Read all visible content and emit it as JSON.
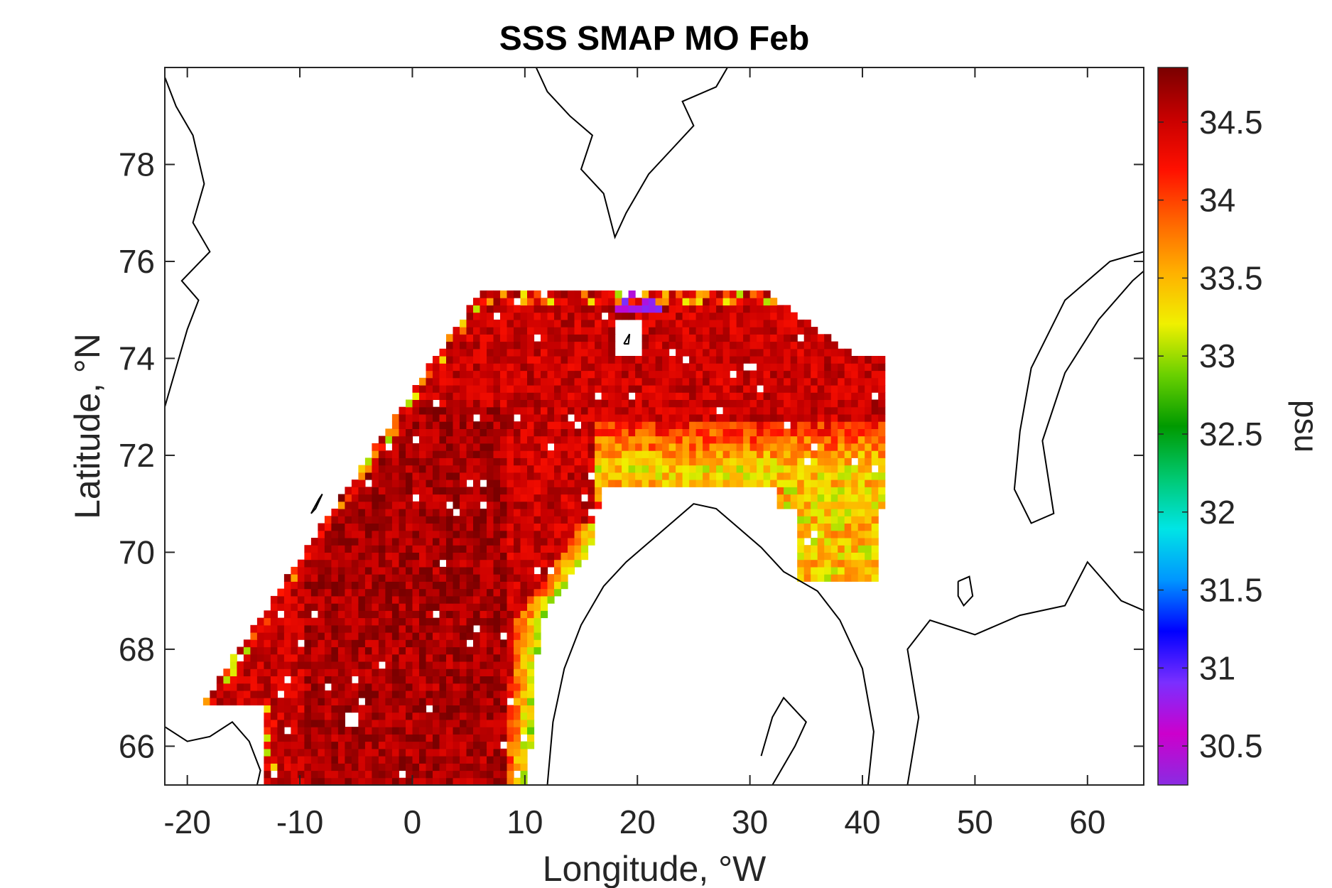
{
  "chart_data": {
    "type": "heatmap",
    "title": "SSS SMAP MO Feb",
    "xlabel": "Longitude, °W",
    "ylabel": "Latitude, °N",
    "xlim": [
      -22,
      65
    ],
    "ylim": [
      65.2,
      80
    ],
    "xticks": [
      -20,
      -10,
      0,
      10,
      20,
      30,
      40,
      50,
      60
    ],
    "xtick_labels": [
      "-20",
      "-10",
      "0",
      "10",
      "20",
      "30",
      "40",
      "50",
      "60"
    ],
    "yticks": [
      66,
      68,
      70,
      72,
      74,
      76,
      78
    ],
    "ytick_labels": [
      "66",
      "68",
      "70",
      "72",
      "74",
      "76",
      "78"
    ],
    "colorbar": {
      "label": "psu",
      "clim": [
        30.25,
        34.85
      ],
      "ticks": [
        30.5,
        31,
        31.5,
        32,
        32.5,
        33,
        33.5,
        34,
        34.5
      ],
      "tick_labels": [
        "30.5",
        "31",
        "31.5",
        "32",
        "32.5",
        "33",
        "33.5",
        "34",
        "34.5"
      ],
      "colormap": [
        "#8a2be2",
        "#cc00cc",
        "#7a2fff",
        "#0000ff",
        "#0096ff",
        "#00e5e5",
        "#00c870",
        "#009a00",
        "#6ad000",
        "#f0f000",
        "#ffb000",
        "#ff6400",
        "#ff1000",
        "#c80000",
        "#7a0000"
      ]
    },
    "grid": false,
    "data_region": {
      "description_of_values": "sea surface salinity, mostly 34.2–34.8 psu over the Norwegian and Barents Seas; fresher 32.5–33.8 psu band along the Norwegian coast and north of Norway; fresher patch ~30.5 psu near 20°E 75°N",
      "sample_points": [
        {
          "lon": 0,
          "lat": 70,
          "psu": 34.7
        },
        {
          "lon": -5,
          "lat": 72,
          "psu": 34.7
        },
        {
          "lon": 10,
          "lat": 73,
          "psu": 34.5
        },
        {
          "lon": 25,
          "lat": 74,
          "psu": 34.4
        },
        {
          "lon": 25,
          "lat": 72,
          "psu": 33.5
        },
        {
          "lon": 20,
          "lat": 71.5,
          "psu": 33.0
        },
        {
          "lon": 35,
          "lat": 70.5,
          "psu": 33.4
        },
        {
          "lon": 10,
          "lat": 67,
          "psu": 33.0
        },
        {
          "lon": 20,
          "lat": 75.2,
          "psu": 30.6
        },
        {
          "lon": -15,
          "lat": 67,
          "psu": 34.6
        }
      ]
    }
  }
}
